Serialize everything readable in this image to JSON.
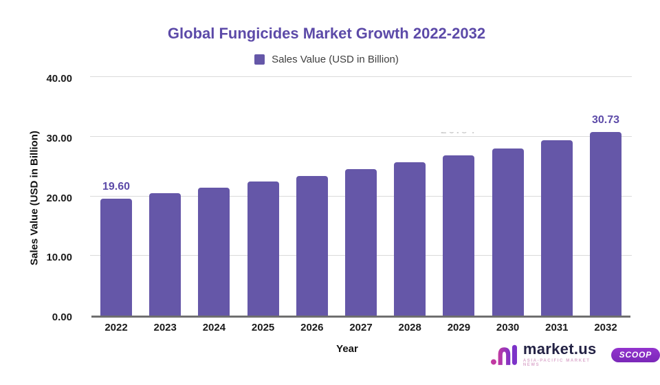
{
  "chart_data": {
    "type": "bar",
    "title": "Global Fungicides Market Growth 2022-2032",
    "xlabel": "Year",
    "ylabel": "Sales Value (USD in Billion)",
    "categories": [
      "2022",
      "2023",
      "2024",
      "2025",
      "2026",
      "2027",
      "2028",
      "2029",
      "2030",
      "2031",
      "2032"
    ],
    "values": [
      19.6,
      20.5,
      21.44,
      22.43,
      23.46,
      24.53,
      25.66,
      26.84,
      28.07,
      29.36,
      30.73
    ],
    "ylim": [
      0,
      40
    ],
    "yticks": [
      0,
      10,
      20,
      30,
      40
    ],
    "ytick_labels": [
      "0.00",
      "10.00",
      "20.00",
      "30.00",
      "40.00"
    ],
    "grid": true,
    "legend_position": "top",
    "legend": [
      {
        "label": "Sales Value (USD in Billion)",
        "color": "#6557a8"
      }
    ],
    "annotations": [
      {
        "index": 0,
        "text": "19.60",
        "faded": false
      },
      {
        "index": 7,
        "text": "26.84",
        "faded": true
      },
      {
        "index": 10,
        "text": "30.73",
        "faded": false
      }
    ]
  },
  "colors": {
    "bar": "#6557a8",
    "title": "#5c4aa8",
    "data_label": "#5c4aa8",
    "gridline": "#dadada",
    "axis_line": "#6f6f6f",
    "tick_text": "#1a1a1a"
  },
  "branding": {
    "wordmark": "market.us",
    "tagline": "ASIA-PACIFIC MARKET NEWS",
    "badge": "SCOOP"
  }
}
